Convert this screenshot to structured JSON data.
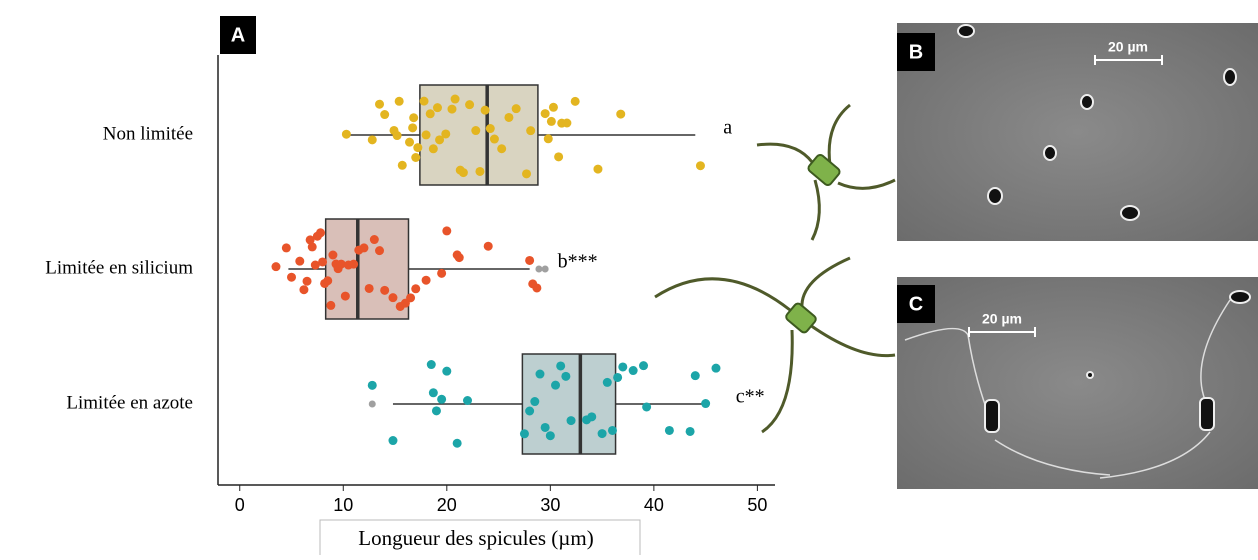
{
  "chart_data": {
    "type": "box",
    "panel_label": "A",
    "x_label": "Longueur des spicules (µm)",
    "xlim": [
      -2.1,
      51.7
    ],
    "xticks": [
      0,
      10,
      20,
      30,
      40,
      50
    ],
    "outlier_color": "#a0a0a0",
    "groups": [
      {
        "name": "Non limitée",
        "letter": "a",
        "color": "#e3b520",
        "box_color": "#d9d4c1",
        "whisker_low": 10.1,
        "q1": 17.4,
        "median": 23.9,
        "q3": 28.8,
        "whisker_high": 44.0,
        "outliers": [],
        "points": [
          10.3,
          12.8,
          13.5,
          14.0,
          14.9,
          15.2,
          15.4,
          15.7,
          16.4,
          16.7,
          16.8,
          17.0,
          17.2,
          17.8,
          18.0,
          18.4,
          18.7,
          19.1,
          19.3,
          19.9,
          20.5,
          20.8,
          21.3,
          21.6,
          22.2,
          22.8,
          23.2,
          23.7,
          24.2,
          24.6,
          25.3,
          26.0,
          26.7,
          27.7,
          28.1,
          29.5,
          29.8,
          30.1,
          30.3,
          30.8,
          31.1,
          31.6,
          32.4,
          34.6,
          36.8,
          44.5
        ]
      },
      {
        "name": "Limitée en silicium",
        "letter": "b***",
        "color": "#e8542a",
        "box_color": "#d9bfb8",
        "whisker_low": 4.7,
        "q1": 8.3,
        "median": 11.4,
        "q3": 16.3,
        "whisker_high": 28.0,
        "outliers": [
          28.9,
          29.5
        ],
        "points": [
          3.5,
          4.5,
          5.0,
          5.8,
          6.2,
          6.5,
          6.8,
          7.0,
          7.3,
          7.5,
          7.8,
          8.0,
          8.2,
          8.5,
          8.8,
          9.0,
          9.3,
          9.5,
          9.8,
          10.2,
          10.5,
          11.0,
          11.5,
          12.0,
          12.5,
          13.0,
          13.5,
          14.0,
          14.8,
          15.5,
          16.0,
          16.5,
          17.0,
          18.0,
          19.5,
          20.0,
          21.0,
          21.2,
          24.0,
          28.0,
          28.3,
          28.7
        ]
      },
      {
        "name": "Limitée en azote",
        "letter": "c**",
        "color": "#1ca5a8",
        "box_color": "#bdcfd0",
        "whisker_low": 14.8,
        "q1": 27.3,
        "median": 32.9,
        "q3": 36.3,
        "whisker_high": 45.2,
        "outliers": [
          12.8
        ],
        "points": [
          12.8,
          14.8,
          18.5,
          18.7,
          19.0,
          19.5,
          20.0,
          21.0,
          22.0,
          27.5,
          28.0,
          28.5,
          29.0,
          29.5,
          30.0,
          30.5,
          31.0,
          31.5,
          32.0,
          33.5,
          34.0,
          35.0,
          35.5,
          36.0,
          36.5,
          37.0,
          38.0,
          39.0,
          39.3,
          41.5,
          43.5,
          44.0,
          45.0,
          46.0
        ]
      }
    ]
  },
  "micrographs": [
    {
      "label": "B",
      "scale": "20 µm"
    },
    {
      "label": "C",
      "scale": "20 µm"
    }
  ]
}
